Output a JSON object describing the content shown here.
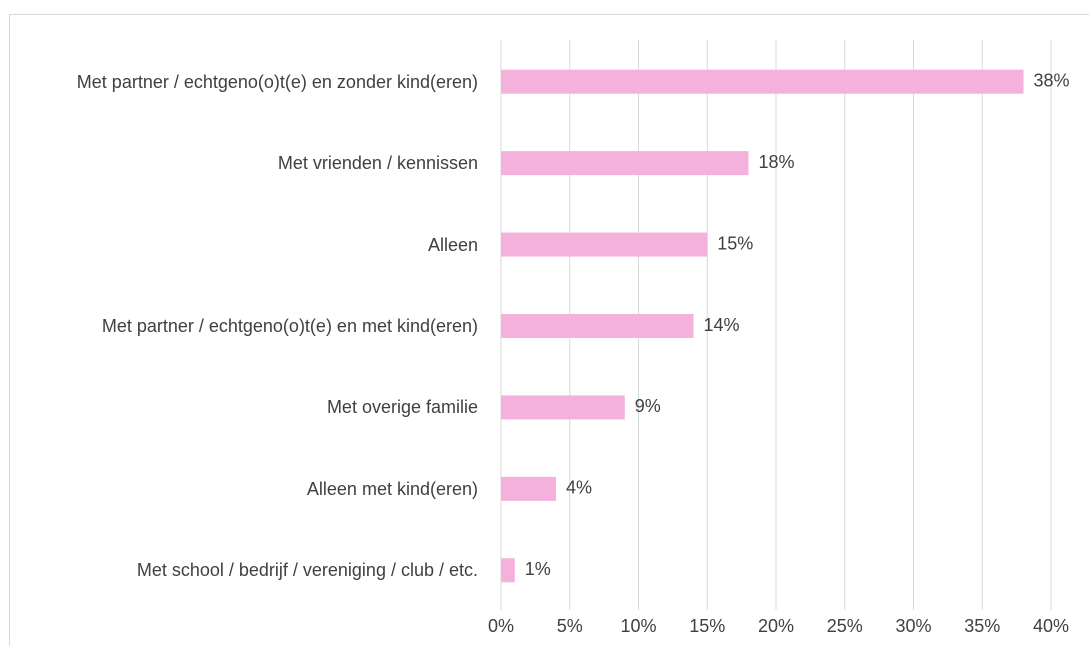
{
  "chart_data": {
    "type": "bar",
    "orientation": "horizontal",
    "categories": [
      "Met partner / echtgeno(o)t(e) en zonder kind(eren)",
      "Met vrienden / kennissen",
      "Alleen",
      "Met partner / echtgeno(o)t(e) en met kind(eren)",
      "Met overige familie",
      "Alleen met kind(eren)",
      "Met school / bedrijf / vereniging / club / etc."
    ],
    "values": [
      38,
      18,
      15,
      14,
      9,
      4,
      1
    ],
    "value_labels": [
      "38%",
      "18%",
      "15%",
      "14%",
      "9%",
      "4%",
      "1%"
    ],
    "color": "#f3b1dc",
    "xlim": [
      0,
      40
    ],
    "xticks": [
      {
        "value": 0,
        "label": "0%"
      },
      {
        "value": 5,
        "label": "5%"
      },
      {
        "value": 10,
        "label": "10%"
      },
      {
        "value": 15,
        "label": "15%"
      },
      {
        "value": 20,
        "label": "20%"
      },
      {
        "value": 25,
        "label": "25%"
      },
      {
        "value": 30,
        "label": "30%"
      },
      {
        "value": 35,
        "label": "35%"
      },
      {
        "value": 40,
        "label": "40%"
      }
    ],
    "grid": true
  }
}
